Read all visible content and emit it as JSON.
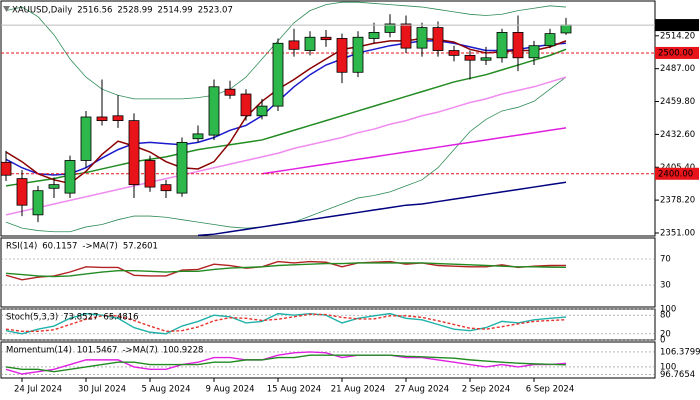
{
  "chart_data": [
    {
      "type": "candlestick",
      "title": "XAUUSD,Daily",
      "categories": [
        null,
        "24 Jul 2024",
        null,
        null,
        null,
        "30 Jul 2024",
        null,
        null,
        null,
        "5 Aug 2024",
        null,
        null,
        null,
        "9 Aug 2024",
        null,
        null,
        null,
        "15 Aug 2024",
        null,
        null,
        null,
        "21 Aug 2024",
        null,
        null,
        null,
        "27 Aug 2024",
        null,
        null,
        null,
        "2 Sep 2024",
        null,
        null,
        null,
        "6 Sep 2024",
        null,
        null
      ],
      "open": [
        2409.5,
        2396,
        2366,
        2388,
        2384,
        2411,
        2447,
        2448,
        2444,
        2411,
        2391,
        2384,
        2429,
        2432,
        2470,
        2466,
        2448,
        2456,
        2510,
        2502,
        2513,
        2512,
        2484,
        2512,
        2517,
        2524,
        2504,
        2521,
        2502,
        2498,
        2494,
        2496,
        2517,
        2496,
        2506,
        2516.56
      ],
      "high": [
        2419,
        2403,
        2390,
        2397,
        2415,
        2452,
        2478,
        2465,
        2450,
        2415,
        2395,
        2430,
        2440,
        2478,
        2477,
        2470,
        2462,
        2512,
        2520,
        2518,
        2519,
        2516,
        2518,
        2525,
        2532,
        2531,
        2525,
        2526,
        2506,
        2502,
        2505,
        2520,
        2531,
        2510,
        2520,
        2528.99
      ],
      "low": [
        2394,
        2365,
        2360,
        2380,
        2380,
        2405,
        2440,
        2438,
        2380,
        2385,
        2380,
        2381,
        2426,
        2428,
        2462,
        2444,
        2445,
        2452,
        2497,
        2498,
        2505,
        2475,
        2480,
        2508,
        2513,
        2500,
        2497,
        2497,
        2493,
        2478,
        2490,
        2492,
        2485,
        2490,
        2504,
        2514.99
      ],
      "close": [
        2398.8,
        2374,
        2386,
        2391,
        2411,
        2447,
        2444,
        2444,
        2391,
        2389,
        2386,
        2426,
        2433,
        2472,
        2465,
        2448,
        2456,
        2508,
        2503,
        2513,
        2511,
        2484,
        2513,
        2517,
        2524,
        2504,
        2521,
        2502,
        2498,
        2494,
        2496,
        2517,
        2496,
        2506,
        2516,
        2523.07
      ],
      "up_color": "#2db84b",
      "down_color": "#e8141a",
      "ylim": [
        2348.5,
        2543
      ],
      "yticks": [
        {
          "value": 2514.2,
          "label": "2514.20"
        },
        {
          "value": 2487,
          "label": "2487.00"
        },
        {
          "value": 2459.8,
          "label": "2459.80"
        },
        {
          "value": 2432.6,
          "label": "2432.60"
        },
        {
          "value": 2405.4,
          "label": "2405.40"
        },
        {
          "value": 2378.2,
          "label": "2378.20"
        },
        {
          "value": 2351,
          "label": "2351.00"
        }
      ],
      "hlines": [
        {
          "value": 2500,
          "label": "2500.00"
        },
        {
          "value": 2400,
          "label": "2400.00"
        }
      ],
      "hline_color": "#e8141a",
      "overlays": [
        {
          "color": "#2e8b57",
          "values": [
            2535,
            2538,
            2530,
            2515,
            2495,
            2480,
            2470,
            2465,
            2462,
            2462,
            2462,
            2462,
            2463,
            2465,
            2470,
            2480,
            2495,
            2510,
            2525,
            2535,
            2540,
            2542,
            2542,
            2541,
            2540,
            2539,
            2538,
            2536,
            2534,
            2532,
            2531,
            2532,
            2535,
            2537,
            2539,
            2538
          ]
        },
        {
          "color": "#2e8b57",
          "values": [
            2360,
            2355,
            2353,
            2352,
            2352,
            2356,
            2358,
            2362,
            2365,
            2365,
            2364,
            2362,
            2360,
            2358,
            2356,
            2355,
            2356,
            2358,
            2360,
            2365,
            2370,
            2375,
            2380,
            2382,
            2385,
            2390,
            2395,
            2405,
            2420,
            2435,
            2445,
            2452,
            2455,
            2460,
            2470,
            2480
          ]
        },
        {
          "color": "#000080",
          "values": [
            null,
            null,
            null,
            null,
            null,
            null,
            null,
            null,
            null,
            null,
            null,
            null,
            2349,
            2350,
            2352,
            2354,
            2356,
            2358,
            2360,
            2362,
            2364,
            2366,
            2368,
            2370,
            2372,
            2374,
            2375,
            2377,
            2379,
            2381,
            2383,
            2385,
            2387,
            2389,
            2391,
            2393
          ]
        },
        {
          "color": "#e020e0",
          "values": [
            null,
            null,
            null,
            null,
            null,
            null,
            null,
            null,
            null,
            null,
            null,
            null,
            null,
            null,
            null,
            null,
            2400,
            2402,
            2404,
            2406,
            2408,
            2410,
            2412,
            2414,
            2416,
            2418,
            2420,
            2422,
            2424,
            2426,
            2428,
            2430,
            2432,
            2434,
            2436,
            2438
          ]
        },
        {
          "color": "#f08cf0",
          "values": [
            2366,
            2369,
            2372,
            2375,
            2378,
            2381,
            2384,
            2387,
            2390,
            2393,
            2396,
            2399,
            2402,
            2405,
            2408,
            2411,
            2414,
            2417,
            2421,
            2424,
            2427,
            2430,
            2434,
            2437,
            2441,
            2444,
            2448,
            2451,
            2455,
            2459,
            2462,
            2466,
            2469,
            2472,
            2476,
            2480
          ]
        },
        {
          "color": "#228b22",
          "values": [
            2390,
            2392,
            2394,
            2396,
            2399,
            2401,
            2404,
            2407,
            2410,
            2412,
            2414,
            2417,
            2420,
            2422,
            2424,
            2426,
            2428,
            2432,
            2436,
            2440,
            2444,
            2448,
            2452,
            2456,
            2460,
            2464,
            2468,
            2472,
            2476,
            2479,
            2482,
            2486,
            2490,
            2494,
            2498,
            2503
          ]
        },
        {
          "color": "#1a1acc",
          "values": [
            2412,
            2405,
            2400,
            2399,
            2400,
            2405,
            2413,
            2420,
            2425,
            2426,
            2425,
            2424,
            2426,
            2430,
            2436,
            2440,
            2448,
            2460,
            2472,
            2482,
            2490,
            2495,
            2500,
            2503,
            2506,
            2508,
            2510,
            2510,
            2508,
            2505,
            2502,
            2502,
            2503,
            2505,
            2507,
            2508
          ]
        },
        {
          "color": "#8b0000",
          "values": [
            2418,
            2410,
            2400,
            2395,
            2392,
            2402,
            2416,
            2427,
            2423,
            2418,
            2410,
            2405,
            2404,
            2410,
            2426,
            2447,
            2460,
            2470,
            2478,
            2487,
            2495,
            2503,
            2505,
            2508,
            2510,
            2510,
            2512,
            2511,
            2509,
            2503,
            2500,
            2501,
            2502,
            2502,
            2505,
            2510
          ]
        }
      ]
    },
    {
      "type": "line",
      "ylim": [
        -3.8,
        102.3
      ],
      "yticks": [
        70,
        30
      ],
      "grid": true,
      "series": [
        {
          "name": "RSI(14)",
          "color": "#b22222",
          "values": [
            45,
            38,
            42,
            44,
            50,
            58,
            57,
            57,
            45,
            44,
            44,
            53,
            54,
            62,
            60,
            56,
            58,
            66,
            64,
            66,
            65,
            58,
            64,
            65,
            66,
            62,
            64,
            60,
            59,
            58,
            58,
            61,
            57,
            59,
            60,
            60.1157
          ]
        },
        {
          "name": "->MA(7)",
          "color": "#228b22",
          "values": [
            48,
            46,
            44,
            43,
            44,
            47,
            50,
            52,
            52,
            51,
            50,
            51,
            51,
            54,
            56,
            57,
            58,
            60,
            61,
            62,
            63,
            63,
            64,
            64,
            64,
            64,
            64,
            63,
            62,
            61,
            60,
            59,
            58,
            58,
            57.5,
            57.2601
          ]
        }
      ]
    },
    {
      "type": "line",
      "title": "Stoch(5,3,3)",
      "ylim": [
        0,
        100
      ],
      "yticks": [
        100,
        80,
        20,
        0
      ],
      "grid": true,
      "series": [
        {
          "color": "#20b2aa",
          "values": [
            30,
            20,
            35,
            45,
            70,
            85,
            80,
            70,
            40,
            25,
            20,
            45,
            60,
            80,
            75,
            55,
            60,
            85,
            80,
            85,
            80,
            55,
            70,
            78,
            85,
            70,
            65,
            50,
            35,
            30,
            40,
            60,
            55,
            65,
            70,
            73.8527
          ]
        },
        {
          "color": "#e9322c",
          "dashed": true,
          "values": [
            35,
            28,
            28,
            33,
            50,
            67,
            78,
            78,
            63,
            45,
            28,
            30,
            42,
            62,
            72,
            70,
            63,
            67,
            75,
            83,
            82,
            73,
            68,
            68,
            78,
            78,
            73,
            62,
            50,
            38,
            35,
            43,
            52,
            60,
            63,
            65.4816
          ]
        }
      ]
    },
    {
      "type": "line",
      "ylim": [
        95.3,
        110.6
      ],
      "yticks": [
        106.3799,
        100,
        96.7654
      ],
      "grid": true,
      "series": [
        {
          "name": "Momentum(14)",
          "color": "#e020e0",
          "values": [
            99,
            97,
            98,
            99,
            101,
            103,
            103,
            103,
            100,
            99,
            99,
            101,
            102,
            104,
            104,
            103,
            103,
            105,
            106,
            106.3799,
            106,
            104,
            105,
            105,
            105,
            104,
            104,
            103,
            102,
            101,
            100,
            101,
            100,
            101,
            101,
            101.5467
          ]
        },
        {
          "name": "->MA(7)",
          "color": "#228b22",
          "values": [
            100,
            99,
            99,
            98,
            99,
            100,
            101,
            102,
            102,
            101,
            101,
            101,
            101,
            102,
            102,
            103,
            103,
            104,
            104,
            105,
            105,
            105,
            105,
            105,
            105,
            104.5,
            104.3,
            104,
            103.7,
            103,
            102.5,
            102,
            101.6,
            101.3,
            101.1,
            100.9228
          ]
        }
      ]
    }
  ]
}
